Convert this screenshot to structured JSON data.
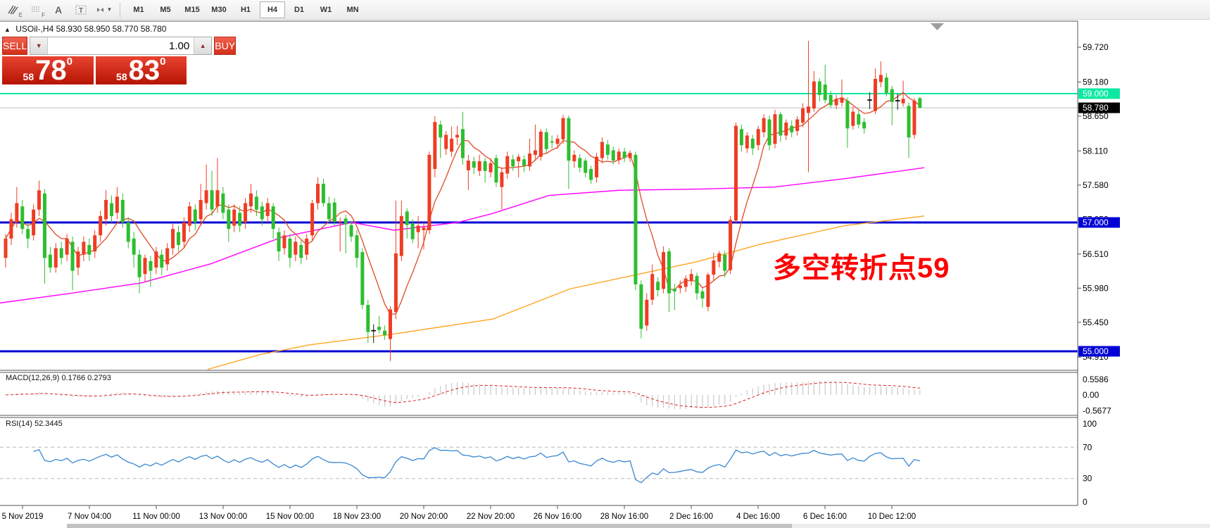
{
  "toolbar": {
    "icons": [
      {
        "name": "pencil-hatch-icon",
        "sub": "E"
      },
      {
        "name": "grid-dots-icon",
        "sub": "F"
      },
      {
        "name": "text-a-icon",
        "sub": ""
      },
      {
        "name": "label-t-icon",
        "sub": ""
      },
      {
        "name": "cursor-mode-icon",
        "sub": ""
      }
    ],
    "timeframes": [
      "M1",
      "M5",
      "M15",
      "M30",
      "H1",
      "H4",
      "D1",
      "W1",
      "MN"
    ],
    "active_timeframe": "H4"
  },
  "title": {
    "marker": "▲",
    "text": "USOil-,H4  58.930 58.950 58.770 58.780"
  },
  "trade_panel": {
    "sell_label": "SELL",
    "buy_label": "BUY",
    "volume": "1.00",
    "spinner_down": "▼",
    "spinner_up": "▲",
    "sell_price_small": "58",
    "sell_price_big": "78",
    "sell_price_sup": "0",
    "buy_price_small": "58",
    "buy_price_big": "83",
    "buy_price_sup": "0"
  },
  "annotation": {
    "text": "多空转折点59",
    "color": "#ff0000"
  },
  "indicators": {
    "macd_label": "MACD(12,26,9) 0.1766 0.2793",
    "rsi_label": "RSI(14) 52.3445"
  },
  "chart_data": {
    "type": "candlestick",
    "symbol": "USOil-",
    "timeframe": "H4",
    "last_bar_ohlc": [
      58.93,
      58.95,
      58.77,
      58.78
    ],
    "colors": {
      "up": "#ee3d23",
      "down": "#2dbe2f",
      "doji": "#141414",
      "ma_fast": "#dd4a26",
      "ma_mid": "#ff00ff",
      "ma_slow": "#ffa520",
      "macd_bar": "#c9c9c9",
      "macd_signal": "#e02020",
      "rsi_line": "#3a87d2"
    },
    "price_ticks": [
      "59.720",
      "59.180",
      "58.650",
      "58.110",
      "57.580",
      "57.050",
      "56.510",
      "55.980",
      "55.450",
      "54.910"
    ],
    "hlines": [
      {
        "price": 59.0,
        "color": "#0de9a2",
        "width": 2,
        "label": "59.000",
        "label_bg": "#0de9a2"
      },
      {
        "price": 58.78,
        "color": "#bdbdbd",
        "width": 1,
        "label": "58.780",
        "label_bg": "#000000"
      },
      {
        "price": 57.0,
        "color": "#0202d6",
        "width": 3,
        "label": "57.000",
        "label_bg": "#0202d6"
      },
      {
        "price": 55.0,
        "color": "#0202d6",
        "width": 3,
        "label": "55.000",
        "label_bg": "#0202d6"
      }
    ],
    "x_labels": [
      "5 Nov 2019",
      "7 Nov 04:00",
      "11 Nov 00:00",
      "13 Nov 00:00",
      "15 Nov 00:00",
      "18 Nov 23:00",
      "20 Nov 20:00",
      "22 Nov 20:00",
      "26 Nov 16:00",
      "28 Nov 16:00",
      "2 Dec 16:00",
      "4 Dec 16:00",
      "6 Dec 16:00",
      "10 Dec 12:00"
    ],
    "black_dojis": [
      66,
      155,
      160
    ],
    "candles": [
      [
        56.45,
        56.82,
        56.3,
        56.75
      ],
      [
        56.75,
        57.15,
        56.65,
        57.05
      ],
      [
        57.0,
        57.55,
        56.92,
        57.3
      ],
      [
        57.25,
        57.35,
        56.82,
        56.9
      ],
      [
        56.9,
        56.98,
        56.6,
        56.75
      ],
      [
        56.8,
        57.28,
        56.72,
        57.2
      ],
      [
        57.2,
        57.65,
        57.1,
        57.5
      ],
      [
        57.45,
        57.52,
        56.05,
        56.45
      ],
      [
        56.5,
        56.62,
        56.22,
        56.3
      ],
      [
        56.3,
        56.68,
        56.22,
        56.6
      ],
      [
        56.6,
        56.7,
        56.35,
        56.45
      ],
      [
        56.5,
        56.82,
        56.4,
        56.75
      ],
      [
        56.7,
        56.78,
        55.95,
        56.25
      ],
      [
        56.3,
        56.62,
        56.18,
        56.55
      ],
      [
        56.5,
        56.78,
        56.4,
        56.7
      ],
      [
        56.65,
        56.75,
        56.4,
        56.5
      ],
      [
        56.55,
        56.88,
        56.45,
        56.8
      ],
      [
        56.8,
        57.18,
        56.7,
        57.1
      ],
      [
        57.05,
        57.5,
        56.95,
        57.35
      ],
      [
        57.3,
        57.42,
        57.0,
        57.1
      ],
      [
        57.15,
        57.55,
        57.05,
        57.4
      ],
      [
        57.35,
        57.45,
        56.92,
        57.0
      ],
      [
        57.0,
        57.08,
        56.6,
        56.7
      ],
      [
        56.75,
        56.85,
        56.3,
        56.5
      ],
      [
        56.5,
        56.58,
        55.9,
        56.15
      ],
      [
        56.2,
        56.5,
        56.08,
        56.45
      ],
      [
        56.4,
        56.48,
        56.0,
        56.25
      ],
      [
        56.3,
        56.62,
        56.2,
        56.55
      ],
      [
        56.5,
        56.58,
        56.18,
        56.3
      ],
      [
        56.35,
        56.68,
        56.25,
        56.6
      ],
      [
        56.6,
        56.98,
        56.5,
        56.9
      ],
      [
        56.85,
        56.95,
        56.55,
        56.65
      ],
      [
        56.7,
        57.08,
        56.6,
        57.0
      ],
      [
        56.95,
        57.32,
        56.85,
        57.25
      ],
      [
        57.2,
        57.28,
        56.88,
        57.0
      ],
      [
        57.05,
        57.6,
        56.95,
        57.35
      ],
      [
        57.3,
        57.9,
        57.2,
        57.5
      ],
      [
        57.5,
        57.8,
        57.1,
        57.2
      ],
      [
        57.25,
        58.0,
        57.15,
        57.5
      ],
      [
        57.45,
        57.55,
        57.05,
        57.15
      ],
      [
        57.2,
        57.28,
        56.7,
        56.9
      ],
      [
        56.95,
        57.28,
        56.85,
        57.2
      ],
      [
        57.15,
        57.25,
        56.85,
        56.95
      ],
      [
        57.0,
        57.38,
        56.9,
        57.3
      ],
      [
        57.25,
        57.6,
        57.15,
        57.45
      ],
      [
        57.4,
        57.5,
        57.1,
        57.2
      ],
      [
        57.25,
        57.32,
        56.95,
        57.05
      ],
      [
        57.1,
        57.38,
        57.0,
        57.3
      ],
      [
        57.25,
        57.3,
        56.75,
        56.9
      ],
      [
        56.85,
        56.92,
        56.4,
        56.55
      ],
      [
        56.6,
        56.88,
        56.5,
        56.8
      ],
      [
        56.75,
        56.82,
        56.3,
        56.45
      ],
      [
        56.5,
        56.78,
        56.4,
        56.7
      ],
      [
        56.65,
        56.72,
        56.35,
        56.45
      ],
      [
        56.5,
        56.82,
        56.42,
        56.75
      ],
      [
        56.8,
        57.35,
        56.72,
        57.3
      ],
      [
        57.3,
        57.7,
        57.2,
        57.6
      ],
      [
        57.6,
        57.68,
        57.25,
        57.3
      ],
      [
        57.3,
        57.4,
        57.0,
        57.05
      ],
      [
        57.31,
        57.38,
        56.95,
        57.01
      ],
      [
        57.0,
        57.08,
        56.55,
        57.02
      ],
      [
        57.06,
        57.12,
        56.52,
        56.97
      ],
      [
        56.96,
        57.02,
        56.7,
        56.78
      ],
      [
        56.8,
        56.88,
        56.3,
        56.45
      ],
      [
        56.54,
        56.6,
        55.65,
        55.72
      ],
      [
        55.72,
        55.8,
        55.13,
        55.3
      ],
      [
        55.33,
        55.42,
        55.13,
        55.31
      ],
      [
        55.38,
        55.55,
        55.28,
        55.33
      ],
      [
        55.32,
        55.4,
        55.18,
        55.25
      ],
      [
        55.19,
        55.7,
        54.85,
        55.65
      ],
      [
        55.61,
        57.34,
        55.5,
        56.52
      ],
      [
        56.48,
        57.34,
        56.4,
        57.1
      ],
      [
        57.17,
        57.22,
        56.75,
        56.96
      ],
      [
        56.98,
        57.05,
        56.68,
        56.74
      ],
      [
        56.85,
        57.1,
        56.6,
        56.95
      ],
      [
        56.88,
        57.0,
        56.58,
        56.92
      ],
      [
        56.88,
        58.1,
        56.82,
        58.05
      ],
      [
        57.83,
        58.65,
        57.7,
        58.56
      ],
      [
        58.52,
        58.58,
        58.0,
        58.32
      ],
      [
        58.14,
        58.42,
        58.05,
        58.36
      ],
      [
        58.1,
        58.49,
        58.02,
        58.3
      ],
      [
        58.32,
        58.5,
        58.2,
        58.36
      ],
      [
        58.45,
        58.72,
        57.9,
        58.0
      ],
      [
        57.81,
        58.05,
        57.5,
        57.96
      ],
      [
        57.95,
        58.02,
        57.75,
        57.85
      ],
      [
        57.8,
        58.05,
        57.72,
        57.95
      ],
      [
        57.95,
        58.0,
        57.62,
        57.8
      ],
      [
        57.78,
        58.0,
        57.7,
        57.92
      ],
      [
        58.0,
        58.05,
        57.55,
        57.62
      ],
      [
        57.55,
        57.85,
        57.2,
        57.78
      ],
      [
        57.76,
        58.1,
        57.68,
        58.03
      ],
      [
        57.98,
        58.05,
        57.8,
        57.87
      ],
      [
        57.95,
        58.06,
        57.7,
        58.02
      ],
      [
        57.98,
        58.04,
        57.78,
        57.88
      ],
      [
        57.87,
        58.3,
        57.8,
        58.07
      ],
      [
        58.05,
        58.52,
        57.98,
        58.12
      ],
      [
        58.02,
        58.45,
        57.96,
        58.41
      ],
      [
        58.4,
        58.46,
        58.08,
        58.14
      ],
      [
        58.26,
        58.35,
        58.15,
        58.24
      ],
      [
        58.22,
        58.36,
        58.14,
        58.3
      ],
      [
        58.29,
        58.67,
        58.22,
        58.62
      ],
      [
        58.62,
        58.66,
        57.52,
        57.96
      ],
      [
        57.95,
        58.12,
        57.85,
        58.05
      ],
      [
        58.0,
        58.06,
        57.78,
        57.85
      ],
      [
        57.96,
        58.0,
        57.7,
        57.77
      ],
      [
        57.83,
        57.88,
        57.6,
        57.66
      ],
      [
        57.7,
        58.08,
        57.62,
        58.02
      ],
      [
        58.0,
        58.32,
        57.92,
        58.25
      ],
      [
        58.21,
        58.28,
        57.98,
        58.05
      ],
      [
        58.12,
        58.18,
        57.9,
        57.96
      ],
      [
        57.97,
        58.15,
        57.9,
        58.1
      ],
      [
        58.1,
        58.16,
        57.94,
        58.0
      ],
      [
        58.0,
        58.12,
        57.94,
        58.08
      ],
      [
        58.05,
        58.1,
        55.95,
        56.04
      ],
      [
        56.04,
        56.1,
        55.2,
        55.35
      ],
      [
        55.4,
        55.9,
        55.32,
        55.8
      ],
      [
        55.8,
        56.35,
        55.72,
        56.2
      ],
      [
        56.08,
        56.15,
        55.85,
        55.95
      ],
      [
        55.97,
        56.63,
        55.9,
        56.54
      ],
      [
        56.55,
        56.6,
        55.61,
        55.9
      ],
      [
        55.97,
        56.05,
        55.64,
        55.93
      ],
      [
        55.98,
        56.1,
        55.9,
        56.02
      ],
      [
        56.0,
        56.18,
        55.92,
        56.13
      ],
      [
        56.1,
        56.28,
        56.02,
        56.2
      ],
      [
        56.17,
        56.22,
        55.8,
        55.9
      ],
      [
        55.93,
        55.98,
        55.68,
        55.82
      ],
      [
        55.69,
        56.22,
        55.62,
        56.19
      ],
      [
        56.19,
        56.53,
        56.1,
        56.41
      ],
      [
        56.39,
        56.56,
        56.3,
        56.52
      ],
      [
        56.5,
        56.56,
        56.15,
        56.25
      ],
      [
        56.26,
        57.1,
        56.2,
        57.04
      ],
      [
        57.03,
        58.55,
        56.98,
        58.5
      ],
      [
        58.45,
        58.52,
        58.1,
        58.2
      ],
      [
        58.15,
        58.4,
        58.08,
        58.35
      ],
      [
        58.3,
        58.36,
        58.05,
        58.15
      ],
      [
        58.2,
        58.5,
        58.12,
        58.45
      ],
      [
        58.4,
        58.68,
        58.32,
        58.62
      ],
      [
        58.6,
        58.66,
        58.12,
        58.2
      ],
      [
        58.22,
        58.75,
        58.15,
        58.68
      ],
      [
        58.68,
        58.72,
        58.25,
        58.35
      ],
      [
        58.35,
        58.6,
        58.28,
        58.55
      ],
      [
        58.5,
        58.58,
        58.32,
        58.4
      ],
      [
        58.42,
        58.65,
        58.35,
        58.6
      ],
      [
        58.55,
        58.85,
        58.48,
        58.77
      ],
      [
        58.7,
        59.82,
        57.78,
        58.8
      ],
      [
        58.77,
        59.35,
        58.72,
        59.19
      ],
      [
        59.19,
        59.24,
        58.88,
        58.98
      ],
      [
        59.14,
        59.45,
        58.85,
        58.9
      ],
      [
        58.98,
        59.04,
        58.78,
        58.82
      ],
      [
        58.82,
        58.98,
        58.76,
        58.92
      ],
      [
        58.86,
        59.22,
        58.8,
        58.94
      ],
      [
        58.89,
        58.94,
        58.16,
        58.46
      ],
      [
        58.5,
        58.8,
        58.44,
        58.72
      ],
      [
        58.68,
        58.74,
        58.46,
        58.52
      ],
      [
        58.56,
        58.62,
        58.38,
        58.46
      ],
      [
        58.89,
        59.02,
        58.76,
        58.91
      ],
      [
        58.73,
        59.39,
        58.68,
        59.23
      ],
      [
        59.18,
        59.5,
        59.1,
        59.29
      ],
      [
        59.25,
        59.32,
        58.96,
        59.01
      ],
      [
        59.07,
        59.12,
        58.51,
        58.87
      ],
      [
        58.88,
        59.0,
        58.75,
        58.9
      ],
      [
        58.85,
        59.2,
        58.8,
        58.92
      ],
      [
        58.81,
        58.86,
        58.0,
        58.32
      ],
      [
        58.36,
        58.93,
        58.3,
        58.89
      ],
      [
        58.93,
        58.95,
        58.77,
        58.78
      ]
    ],
    "ma_mid_points": [
      [
        0,
        55.75
      ],
      [
        100,
        55.9
      ],
      [
        200,
        56.06
      ],
      [
        300,
        56.36
      ],
      [
        400,
        56.77
      ],
      [
        500,
        57.0
      ],
      [
        560,
        56.88
      ],
      [
        650,
        57.0
      ],
      [
        700,
        57.14
      ],
      [
        780,
        57.42
      ],
      [
        880,
        57.5
      ],
      [
        1000,
        57.52
      ],
      [
        1100,
        57.55
      ],
      [
        1200,
        57.68
      ],
      [
        1313,
        57.85
      ]
    ],
    "ma_slow_points": [
      [
        295,
        54.72
      ],
      [
        370,
        54.95
      ],
      [
        440,
        55.1
      ],
      [
        560,
        55.27
      ],
      [
        700,
        55.5
      ],
      [
        810,
        55.97
      ],
      [
        990,
        56.39
      ],
      [
        1080,
        56.66
      ],
      [
        1200,
        56.95
      ],
      [
        1313,
        57.1
      ]
    ],
    "ma_fast_period": 7,
    "macd": {
      "params": [
        12,
        26,
        9
      ],
      "value": 0.1766,
      "signal": 0.2793,
      "axis": [
        "0.5586",
        "0.00",
        "-0.5677"
      ]
    },
    "rsi": {
      "period": 14,
      "value": 52.3445,
      "axis": [
        "100",
        "70",
        "30",
        "0"
      ],
      "levels": [
        70,
        30
      ]
    }
  }
}
